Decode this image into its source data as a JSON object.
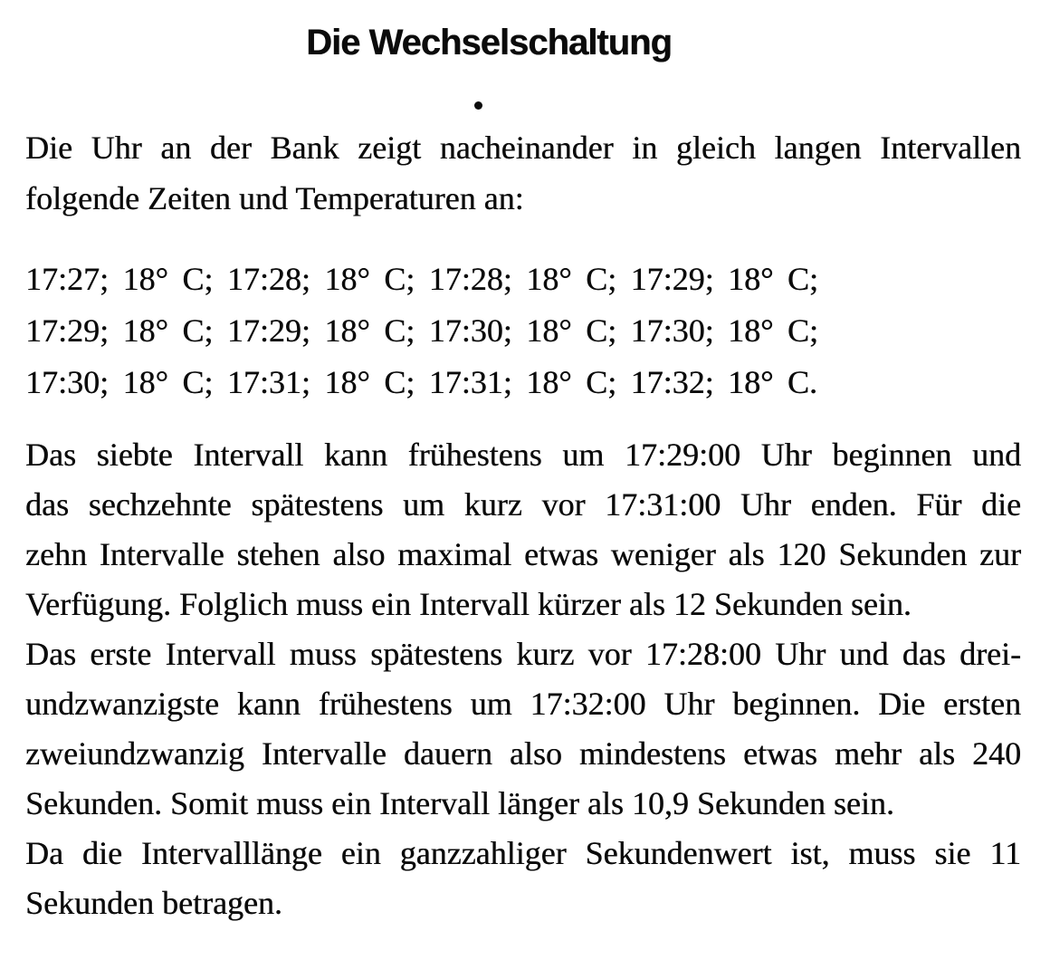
{
  "doc": {
    "title": "Die Wechselschaltung",
    "intro": {
      "lines": [
        "Die Uhr an der Bank zeigt nacheinander in gleich langen Intervallen",
        "folgende Zeiten und Temperaturen an:"
      ]
    },
    "readings": {
      "lines": [
        "17:27; 18° C; 17:28; 18° C; 17:28; 18° C; 17:29; 18° C;",
        "17:29; 18° C; 17:29; 18° C; 17:30; 18° C; 17:30; 18° C;",
        "17:30; 18° C; 17:31; 18° C; 17:31; 18° C; 17:32; 18° C."
      ]
    },
    "solution": {
      "lines": [
        "Das siebte Intervall kann frühestens um 17:29:00 Uhr beginnen und",
        "das sechzehnte spätestens um kurz vor 17:31:00 Uhr enden. Für die",
        "zehn Intervalle stehen also maximal etwas weniger als 120 Sekunden zur",
        "Verfügung. Folglich muss ein Intervall kürzer als 12 Sekunden sein.",
        "Das erste Intervall muss spätestens kurz vor 17:28:00 Uhr und das drei-",
        "undzwanzigste kann frühestens um 17:32:00 Uhr beginnen. Die ersten",
        "zweiundzwanzig Intervalle dauern also mindestens etwas mehr als 240",
        "Sekunden. Somit muss ein Intervall länger als 10,9 Sekunden sein.",
        "Da die Intervalllänge ein ganzzahliger Sekundenwert ist, muss sie 11",
        "Sekunden betragen."
      ]
    },
    "colors": {
      "ink": "#0b0b0b",
      "paper": "#ffffff"
    }
  }
}
